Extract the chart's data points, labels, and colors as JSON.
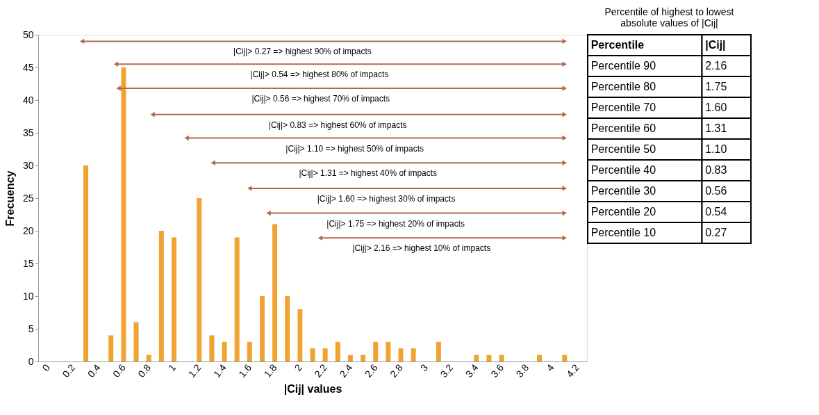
{
  "chart_data": [
    {
      "type": "bar",
      "xlabel": "|Cij| values",
      "ylabel": "Frecuency",
      "x": [
        0,
        0.1,
        0.2,
        0.3,
        0.4,
        0.5,
        0.6,
        0.7,
        0.8,
        0.9,
        1.0,
        1.1,
        1.2,
        1.3,
        1.4,
        1.5,
        1.6,
        1.7,
        1.8,
        1.9,
        2.0,
        2.1,
        2.2,
        2.3,
        2.4,
        2.5,
        2.6,
        2.7,
        2.8,
        2.9,
        3.0,
        3.1,
        3.2,
        3.3,
        3.4,
        3.5,
        3.6,
        3.7,
        3.8,
        3.9,
        4.0,
        4.1,
        4.2
      ],
      "values": [
        0,
        0,
        0,
        30,
        0,
        4,
        45,
        6,
        1,
        20,
        19,
        0,
        25,
        4,
        3,
        19,
        3,
        10,
        21,
        10,
        8,
        2,
        2,
        3,
        1,
        1,
        3,
        3,
        2,
        2,
        0,
        3,
        0,
        0,
        1,
        1,
        1,
        0,
        0,
        1,
        0,
        1,
        0
      ],
      "color": "#f0a331",
      "series": [
        {
          "type": "line",
          "x": [
            0.27,
            4.1
          ],
          "values": [
            49,
            49
          ],
          "color": "#b06a50"
        },
        {
          "type": "line",
          "x": [
            0.54,
            4.1
          ],
          "values": [
            45.5,
            45.5
          ],
          "color": "#b06a50"
        },
        {
          "type": "line",
          "x": [
            0.56,
            4.1
          ],
          "values": [
            41.8,
            41.8
          ],
          "color": "#b06a50"
        },
        {
          "type": "line",
          "x": [
            0.83,
            4.1
          ],
          "values": [
            37.8,
            37.8
          ],
          "color": "#b06a50"
        },
        {
          "type": "line",
          "x": [
            1.1,
            4.1
          ],
          "values": [
            34.2,
            34.2
          ],
          "color": "#b06a50"
        },
        {
          "type": "line",
          "x": [
            1.31,
            4.1
          ],
          "values": [
            30.4,
            30.4
          ],
          "color": "#b06a50"
        },
        {
          "type": "line",
          "x": [
            1.6,
            4.1
          ],
          "values": [
            26.5,
            26.5
          ],
          "color": "#b06a50"
        },
        {
          "type": "line",
          "x": [
            1.75,
            4.1
          ],
          "values": [
            22.7,
            22.7
          ],
          "color": "#b06a50"
        },
        {
          "type": "line",
          "x": [
            2.16,
            4.1
          ],
          "values": [
            18.9,
            18.9
          ],
          "color": "#b06a50"
        }
      ],
      "marker": "triangle",
      "xlim": [
        -0.05,
        4.25
      ],
      "xticks": [
        0,
        0.2,
        0.4,
        0.6,
        0.8,
        1,
        1.2,
        1.4,
        1.6,
        1.8,
        2,
        2.2,
        2.4,
        2.6,
        2.8,
        3,
        3.2,
        3.4,
        3.6,
        3.8,
        4,
        4.2
      ],
      "ylim": [
        0,
        50
      ],
      "yticks": [
        0,
        5,
        10,
        15,
        20,
        25,
        30,
        35,
        40,
        45,
        50
      ],
      "grid": false,
      "annotations": [
        "|Cij|> 0.27 => highest 90% of impacts",
        "|Cij|> 0.54 => highest 80% of impacts",
        "|Cij|> 0.56 => highest 70% of impacts",
        "|Cij|> 0.83 => highest 60% of  impacts",
        "|Cij|> 1.10 => highest 50% of impacts",
        "|Cij|> 1.31 => highest 40% of  impacts",
        "|Cij|> 1.60 => highest 30% of  impacts",
        "|Cij|> 1.75 => highest 20% of impacts",
        "|Cij|> 2.16 => highest 10% of impacts"
      ]
    },
    {
      "type": "other",
      "title": "Percentile of highest to lowest absolute values of |Cij|",
      "xlabel": "Percentile",
      "ylabel": "|Cij|",
      "categories": [
        "Percentile 90",
        "Percentile 80",
        "Percentile 70",
        "Percentile 60",
        "Percentile 50",
        "Percentile 40",
        "Percentile 30",
        "Percentile 20",
        "Percentile 10"
      ],
      "values": [
        2.16,
        1.75,
        1.6,
        1.31,
        1.1,
        0.83,
        0.56,
        0.54,
        0.27
      ],
      "value_labels": [
        "2.16",
        "1.75",
        "1.60",
        "1.31",
        "1.10",
        "0.83",
        "0.56",
        "0.54",
        "0.27"
      ]
    }
  ]
}
